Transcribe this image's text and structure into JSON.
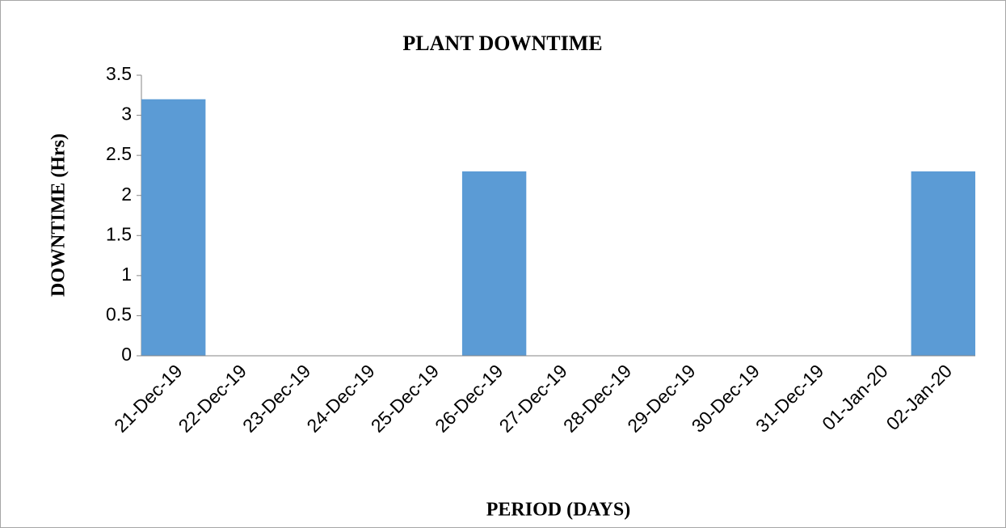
{
  "chart_data": {
    "type": "bar",
    "title": "PLANT DOWNTIME",
    "x_label": "PERIOD (DAYS)",
    "y_label": "DOWNTIME (Hrs)",
    "categories": [
      "21-Dec-19",
      "22-Dec-19",
      "23-Dec-19",
      "24-Dec-19",
      "25-Dec-19",
      "26-Dec-19",
      "27-Dec-19",
      "28-Dec-19",
      "29-Dec-19",
      "30-Dec-19",
      "31-Dec-19",
      "01-Jan-20",
      "02-Jan-20"
    ],
    "values": [
      3.2,
      0,
      0,
      0,
      0,
      2.3,
      0,
      0,
      0,
      0,
      0,
      0,
      2.3
    ],
    "color": "#5b9bd5",
    "ylim": [
      0,
      3.5
    ],
    "yticks": [
      0,
      0.5,
      1,
      1.5,
      2,
      2.5,
      3,
      3.5
    ],
    "grid": false
  }
}
